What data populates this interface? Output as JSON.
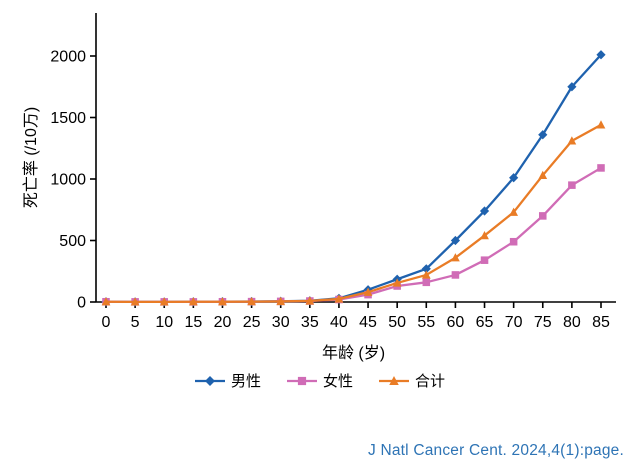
{
  "chart_data": {
    "type": "line",
    "title": "",
    "xlabel": "年龄 (岁)",
    "ylabel": "死亡率 (/10万)",
    "x": [
      0,
      5,
      10,
      15,
      20,
      25,
      30,
      35,
      40,
      45,
      50,
      55,
      60,
      65,
      70,
      75,
      80,
      85
    ],
    "series": [
      {
        "name": "男性",
        "marker": "diamond",
        "color": "#1f62ae",
        "values": [
          2,
          1,
          1,
          2,
          3,
          4,
          6,
          10,
          30,
          100,
          185,
          270,
          500,
          740,
          1010,
          1360,
          1750,
          2010
        ]
      },
      {
        "name": "女性",
        "marker": "square",
        "color": "#d06cb6",
        "values": [
          2,
          1,
          1,
          1,
          2,
          3,
          5,
          8,
          20,
          60,
          130,
          160,
          220,
          340,
          490,
          700,
          950,
          1090
        ]
      },
      {
        "name": "合计",
        "marker": "triangle",
        "color": "#e97c26",
        "values": [
          2,
          1,
          1,
          2,
          2,
          3,
          5,
          9,
          25,
          80,
          155,
          220,
          360,
          540,
          730,
          1030,
          1310,
          1440
        ]
      }
    ],
    "ylim": [
      0,
      2000
    ],
    "yticks": [
      0,
      500,
      1000,
      1500,
      2000
    ],
    "grid": false,
    "legend_position": "bottom"
  },
  "caption": "J Natl Cancer Cent. 2024,4(1):page.",
  "colors": {
    "caption": "#2e74b5",
    "axis": "#000000"
  }
}
